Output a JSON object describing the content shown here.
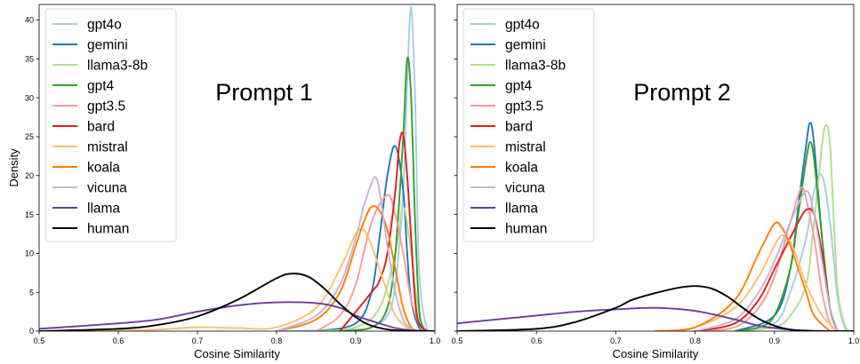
{
  "chart_data": [
    {
      "type": "line",
      "panel": "left",
      "annotation": "Prompt 1",
      "xlabel": "Cosine Similarity",
      "ylabel": "Density",
      "xlim": [
        0.5,
        1.0
      ],
      "ylim": [
        0,
        42
      ],
      "xticks": [
        0.5,
        0.6,
        0.7,
        0.8,
        0.9,
        1.0
      ],
      "xtick_labels": [
        "0.5",
        "0.6",
        "0.7",
        "0.8",
        "0.9",
        "1.0"
      ],
      "yticks": [
        0,
        5,
        10,
        15,
        20,
        25,
        30,
        35,
        40
      ],
      "ytick_labels": [
        "0",
        "5",
        "10",
        "15",
        "20",
        "25",
        "30",
        "35",
        "40"
      ],
      "grid": false,
      "legend_position": "top-left",
      "series": [
        {
          "name": "gpt4o",
          "color": "#a6cee3",
          "x": [
            0.8,
            0.9,
            0.92,
            0.94,
            0.95,
            0.96,
            0.965,
            0.97,
            0.975,
            0.98,
            0.99,
            1.0
          ],
          "y": [
            0,
            0.2,
            0.5,
            2,
            6,
            18,
            32,
            41.7,
            30,
            8,
            0.3,
            0
          ]
        },
        {
          "name": "gemini",
          "color": "#1f78b4",
          "x": [
            0.85,
            0.9,
            0.92,
            0.93,
            0.94,
            0.95,
            0.96,
            0.965,
            0.97,
            0.98,
            0.99
          ],
          "y": [
            0,
            1,
            5,
            12,
            20,
            23.8,
            18,
            10,
            4,
            0.5,
            0
          ]
        },
        {
          "name": "llama3-8b",
          "color": "#b2df8a",
          "x": [
            0.85,
            0.9,
            0.93,
            0.95,
            0.96,
            0.97,
            0.98,
            0.99
          ],
          "y": [
            0,
            0.5,
            3,
            10,
            16,
            10,
            2,
            0
          ]
        },
        {
          "name": "gpt4",
          "color": "#33a02c",
          "x": [
            0.88,
            0.92,
            0.94,
            0.95,
            0.96,
            0.965,
            0.97,
            0.975,
            0.98,
            0.985,
            0.99
          ],
          "y": [
            0,
            0.5,
            3,
            10,
            25,
            35,
            30,
            14,
            3,
            0.5,
            0
          ]
        },
        {
          "name": "gpt3.5",
          "color": "#fb9a99",
          "x": [
            0.85,
            0.88,
            0.9,
            0.92,
            0.94,
            0.95,
            0.96,
            0.97,
            0.98,
            0.99
          ],
          "y": [
            0,
            2,
            6,
            14,
            17.5,
            15,
            10,
            4,
            1,
            0
          ]
        },
        {
          "name": "bard",
          "color": "#e31a1c",
          "x": [
            0.88,
            0.92,
            0.93,
            0.94,
            0.95,
            0.955,
            0.96,
            0.965,
            0.97,
            0.975,
            0.98,
            0.99
          ],
          "y": [
            0,
            5,
            6.5,
            10,
            18,
            24,
            25.3,
            20,
            12,
            4,
            1,
            0
          ]
        },
        {
          "name": "mistral",
          "color": "#fdbf6f",
          "x": [
            0.5,
            0.6,
            0.65,
            0.7,
            0.75,
            0.8,
            0.85,
            0.88,
            0.9,
            0.91,
            0.92,
            0.93,
            0.94,
            0.95,
            0.97
          ],
          "y": [
            0,
            0.05,
            0.2,
            0.5,
            0.4,
            0.5,
            3,
            8,
            12.5,
            13,
            11,
            8,
            5,
            2,
            0
          ]
        },
        {
          "name": "koala",
          "color": "#ff7f00",
          "x": [
            0.8,
            0.85,
            0.88,
            0.9,
            0.91,
            0.92,
            0.93,
            0.94,
            0.95,
            0.96,
            0.97,
            0.98
          ],
          "y": [
            0,
            1.5,
            5,
            11,
            14,
            16,
            15.5,
            13,
            8,
            3,
            0.5,
            0
          ]
        },
        {
          "name": "vicuna",
          "color": "#cab2d6",
          "x": [
            0.8,
            0.85,
            0.88,
            0.9,
            0.91,
            0.92,
            0.925,
            0.93,
            0.94,
            0.95,
            0.96,
            0.97,
            0.98
          ],
          "y": [
            0,
            2,
            6,
            12,
            16,
            19,
            19.8,
            18,
            11,
            5,
            1.5,
            0.3,
            0
          ]
        },
        {
          "name": "llama",
          "color": "#6a3d9a",
          "x": [
            0.5,
            0.6,
            0.65,
            0.7,
            0.75,
            0.8,
            0.85,
            0.88,
            0.9,
            0.93,
            0.95,
            0.97,
            1.0
          ],
          "y": [
            0.3,
            1,
            1.5,
            2.5,
            3.3,
            3.7,
            3.6,
            3,
            2,
            1,
            0.4,
            0.1,
            0
          ]
        },
        {
          "name": "human",
          "color": "#000000",
          "x": [
            0.5,
            0.6,
            0.65,
            0.7,
            0.75,
            0.8,
            0.82,
            0.84,
            0.86,
            0.88,
            0.9,
            0.92,
            0.95,
            1.0
          ],
          "y": [
            0,
            0.3,
            0.8,
            1.9,
            4,
            6.8,
            7.4,
            7,
            5.5,
            3.5,
            1.8,
            0.7,
            0.1,
            0
          ]
        }
      ]
    },
    {
      "type": "line",
      "panel": "right",
      "annotation": "Prompt 2",
      "xlabel": "Cosine Similarity",
      "ylabel": "",
      "xlim": [
        0.5,
        1.0
      ],
      "ylim": [
        0,
        42
      ],
      "xticks": [
        0.5,
        0.6,
        0.7,
        0.8,
        0.9,
        1.0
      ],
      "xtick_labels": [
        "0.5",
        "0.6",
        "0.7",
        "0.8",
        "0.9",
        "1.0"
      ],
      "yticks": [
        0,
        5,
        10,
        15,
        20,
        25,
        30,
        35,
        40
      ],
      "ytick_labels": [],
      "grid": false,
      "legend_position": "top-left",
      "series": [
        {
          "name": "gpt4o",
          "color": "#a6cee3",
          "x": [
            0.85,
            0.9,
            0.92,
            0.94,
            0.95,
            0.96,
            0.97,
            0.98,
            0.99
          ],
          "y": [
            0,
            1,
            5,
            12,
            18,
            20,
            14,
            4,
            0
          ]
        },
        {
          "name": "gemini",
          "color": "#1f78b4",
          "x": [
            0.85,
            0.9,
            0.92,
            0.93,
            0.94,
            0.945,
            0.95,
            0.96,
            0.97,
            0.98
          ],
          "y": [
            0,
            2,
            8,
            16,
            24,
            26.8,
            24,
            12,
            3,
            0
          ]
        },
        {
          "name": "llama3-8b",
          "color": "#b2df8a",
          "x": [
            0.85,
            0.9,
            0.92,
            0.94,
            0.95,
            0.96,
            0.965,
            0.97,
            0.975,
            0.98,
            0.99,
            1.0
          ],
          "y": [
            0,
            0.5,
            2,
            6,
            14,
            24,
            26.5,
            24,
            14,
            5,
            0.5,
            0
          ]
        },
        {
          "name": "gpt4",
          "color": "#33a02c",
          "x": [
            0.85,
            0.88,
            0.9,
            0.92,
            0.93,
            0.94,
            0.945,
            0.95,
            0.96,
            0.97,
            0.98
          ],
          "y": [
            0,
            0.5,
            2,
            8,
            15,
            22,
            24.3,
            22,
            12,
            3,
            0
          ]
        },
        {
          "name": "gpt3.5",
          "color": "#fb9a99",
          "x": [
            0.8,
            0.85,
            0.88,
            0.9,
            0.92,
            0.93,
            0.935,
            0.94,
            0.95,
            0.96,
            0.97,
            0.98
          ],
          "y": [
            0,
            0.5,
            3,
            7,
            14,
            17.5,
            18.5,
            17,
            12,
            5,
            1,
            0
          ]
        },
        {
          "name": "bard",
          "color": "#e31a1c",
          "x": [
            0.8,
            0.85,
            0.88,
            0.9,
            0.92,
            0.93,
            0.94,
            0.95,
            0.96,
            0.97,
            0.98
          ],
          "y": [
            0,
            1,
            4,
            8,
            12,
            14,
            15.6,
            15,
            10,
            3,
            0
          ]
        },
        {
          "name": "mistral",
          "color": "#fdbf6f",
          "x": [
            0.75,
            0.8,
            0.85,
            0.88,
            0.9,
            0.91,
            0.92,
            0.93,
            0.94,
            0.96,
            0.98
          ],
          "y": [
            0,
            0.5,
            3,
            7,
            11,
            12.3,
            11.5,
            9,
            6,
            2,
            0
          ]
        },
        {
          "name": "koala",
          "color": "#ff7f00",
          "x": [
            0.75,
            0.8,
            0.85,
            0.88,
            0.9,
            0.91,
            0.92,
            0.93,
            0.94,
            0.95,
            0.97
          ],
          "y": [
            0,
            0.5,
            4,
            10,
            13.8,
            13.2,
            11,
            8,
            5,
            2,
            0
          ]
        },
        {
          "name": "vicuna",
          "color": "#cab2d6",
          "x": [
            0.8,
            0.85,
            0.88,
            0.9,
            0.92,
            0.94,
            0.95,
            0.96,
            0.97,
            0.98
          ],
          "y": [
            0,
            1.5,
            5,
            9,
            14,
            18,
            15,
            9,
            3,
            0
          ]
        },
        {
          "name": "llama",
          "color": "#6a3d9a",
          "x": [
            0.5,
            0.55,
            0.6,
            0.65,
            0.7,
            0.75,
            0.8,
            0.85,
            0.88,
            0.9,
            0.92,
            0.95,
            0.98,
            1.0
          ],
          "y": [
            1,
            1.5,
            2,
            2.5,
            2.8,
            3,
            2.6,
            1.5,
            0.7,
            0.4,
            0.2,
            0.05,
            0,
            0
          ]
        },
        {
          "name": "human",
          "color": "#000000",
          "x": [
            0.5,
            0.6,
            0.65,
            0.7,
            0.72,
            0.75,
            0.78,
            0.8,
            0.82,
            0.84,
            0.86,
            0.88,
            0.9,
            0.92,
            0.95,
            1.0
          ],
          "y": [
            0,
            0.3,
            1.2,
            3,
            4,
            4.9,
            5.6,
            5.8,
            5.5,
            4.5,
            3,
            1.6,
            0.7,
            0.2,
            0,
            0
          ]
        }
      ]
    }
  ]
}
